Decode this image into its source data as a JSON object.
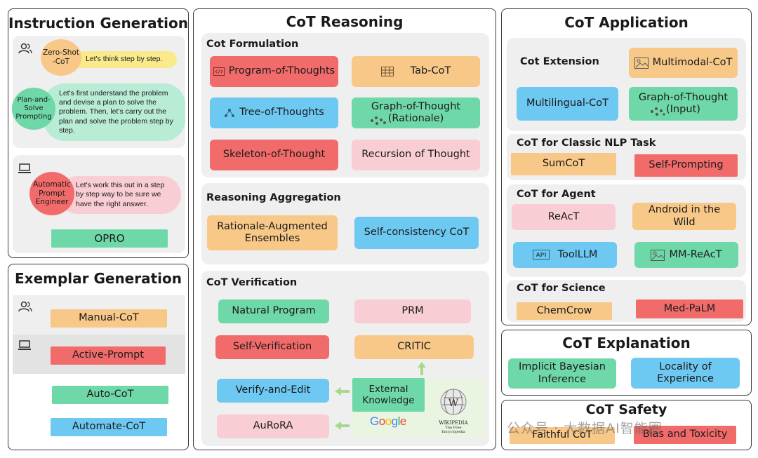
{
  "instruction_generation": {
    "title": "Instruction Generation",
    "zero_shot": {
      "label": "Zero-Shot\n-CoT",
      "bubble": "Let's think step by step."
    },
    "plan_solve": {
      "label": "Plan-and-\nSolve\nPrompting",
      "bubble": "Let's first understand the problem and devise a plan to solve the problem. Then, let's carry out the plan and solve the problem step by step."
    },
    "ape": {
      "label": "Automatic\nPrompt\nEngineer",
      "bubble": "Let's work this out in a step by step way to be sure we have the right answer."
    },
    "opro": "OPRO"
  },
  "exemplar_generation": {
    "title": "Exemplar Generation",
    "manual": "Manual-CoT",
    "active": "Active-Prompt",
    "auto": "Auto-CoT",
    "automate": "Automate-CoT"
  },
  "cot_reasoning": {
    "title": "CoT Reasoning",
    "formulation": {
      "title": "Cot Formulation",
      "program": "Program-of-Thoughts",
      "tab": "Tab-CoT",
      "tree": "Tree-of-Thoughts",
      "graph": "Graph-of-Thought\n(Rationale)",
      "skeleton": "Skeleton-of-Thought",
      "recursion": "Recursion of Thought"
    },
    "aggregation": {
      "title": "Reasoning Aggregation",
      "rationale": "Rationale-Augmented\nEnsembles",
      "self_consistency": "Self-consistency CoT"
    },
    "verification": {
      "title": "CoT Verification",
      "natural": "Natural Program",
      "prm": "PRM",
      "self_verification": "Self-Verification",
      "critic": "CRITIC",
      "verify_edit": "Verify-and-Edit",
      "external": "External\nKnowledge",
      "aurora": "AuRoRA",
      "google": "Google",
      "wikipedia": "WIKIPEDIA",
      "wikipedia_sub": "The Free Encyclopedia"
    }
  },
  "cot_application": {
    "title": "CoT Application",
    "extension": {
      "title": "Cot Extension",
      "multimodal": "Multimodal-CoT",
      "multilingual": "Multilingual-CoT",
      "graph_input": "Graph-of-Thought\n(Input)"
    },
    "nlp": {
      "title": "CoT for Classic NLP Task",
      "sumcot": "SumCoT",
      "self_prompting": "Self-Prompting"
    },
    "agent": {
      "title": "CoT for Agent",
      "react": "ReAcT",
      "android": "Android in the\nWild",
      "toolllm": "ToolLLM",
      "mm_react": "MM-ReAcT"
    },
    "science": {
      "title": "CoT for Science",
      "chemcrow": "ChemCrow",
      "medpalm": "Med-PaLM"
    }
  },
  "cot_explanation": {
    "title": "CoT Explanation",
    "bayesian": "Implicit Bayesian\nInference",
    "locality": "Locality of\nExperience"
  },
  "cot_safety": {
    "title": "CoT Safety",
    "faithful": "Faithful CoT",
    "bias": "Bias and Toxicity"
  },
  "watermark": "公众号 · 大数据AI智能圈",
  "icon_names": [
    "user-icon",
    "laptop-icon",
    "code-icon",
    "table-icon",
    "tree-icon",
    "graph-icon",
    "image-icon",
    "api-icon",
    "arrow-icon"
  ]
}
